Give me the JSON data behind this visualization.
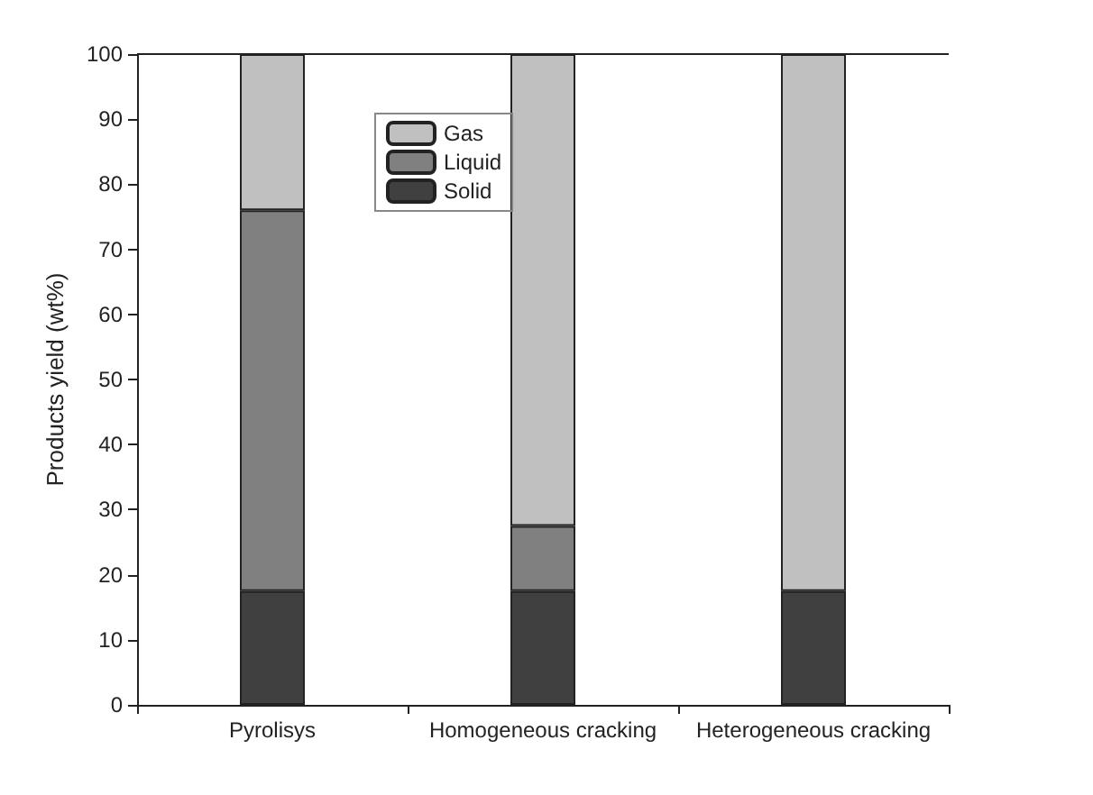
{
  "chart_data": {
    "type": "bar",
    "stacked": true,
    "ylabel": "Products yield (wt%)",
    "categories": [
      "Pyrolisys",
      "Homogeneous cracking",
      "Heterogeneous cracking"
    ],
    "series": [
      {
        "name": "Solid",
        "color": "#404040",
        "values": [
          17.5,
          17.5,
          17.5
        ]
      },
      {
        "name": "Liquid",
        "color": "#808080",
        "values": [
          58.5,
          10,
          0
        ]
      },
      {
        "name": "Gas",
        "color": "#c0c0c0",
        "values": [
          24,
          72.5,
          82.5
        ]
      }
    ],
    "ylim": [
      0,
      100
    ],
    "yticks": [
      0,
      10,
      20,
      30,
      40,
      50,
      60,
      70,
      80,
      90,
      100
    ],
    "grid": false,
    "legend": "top left"
  }
}
